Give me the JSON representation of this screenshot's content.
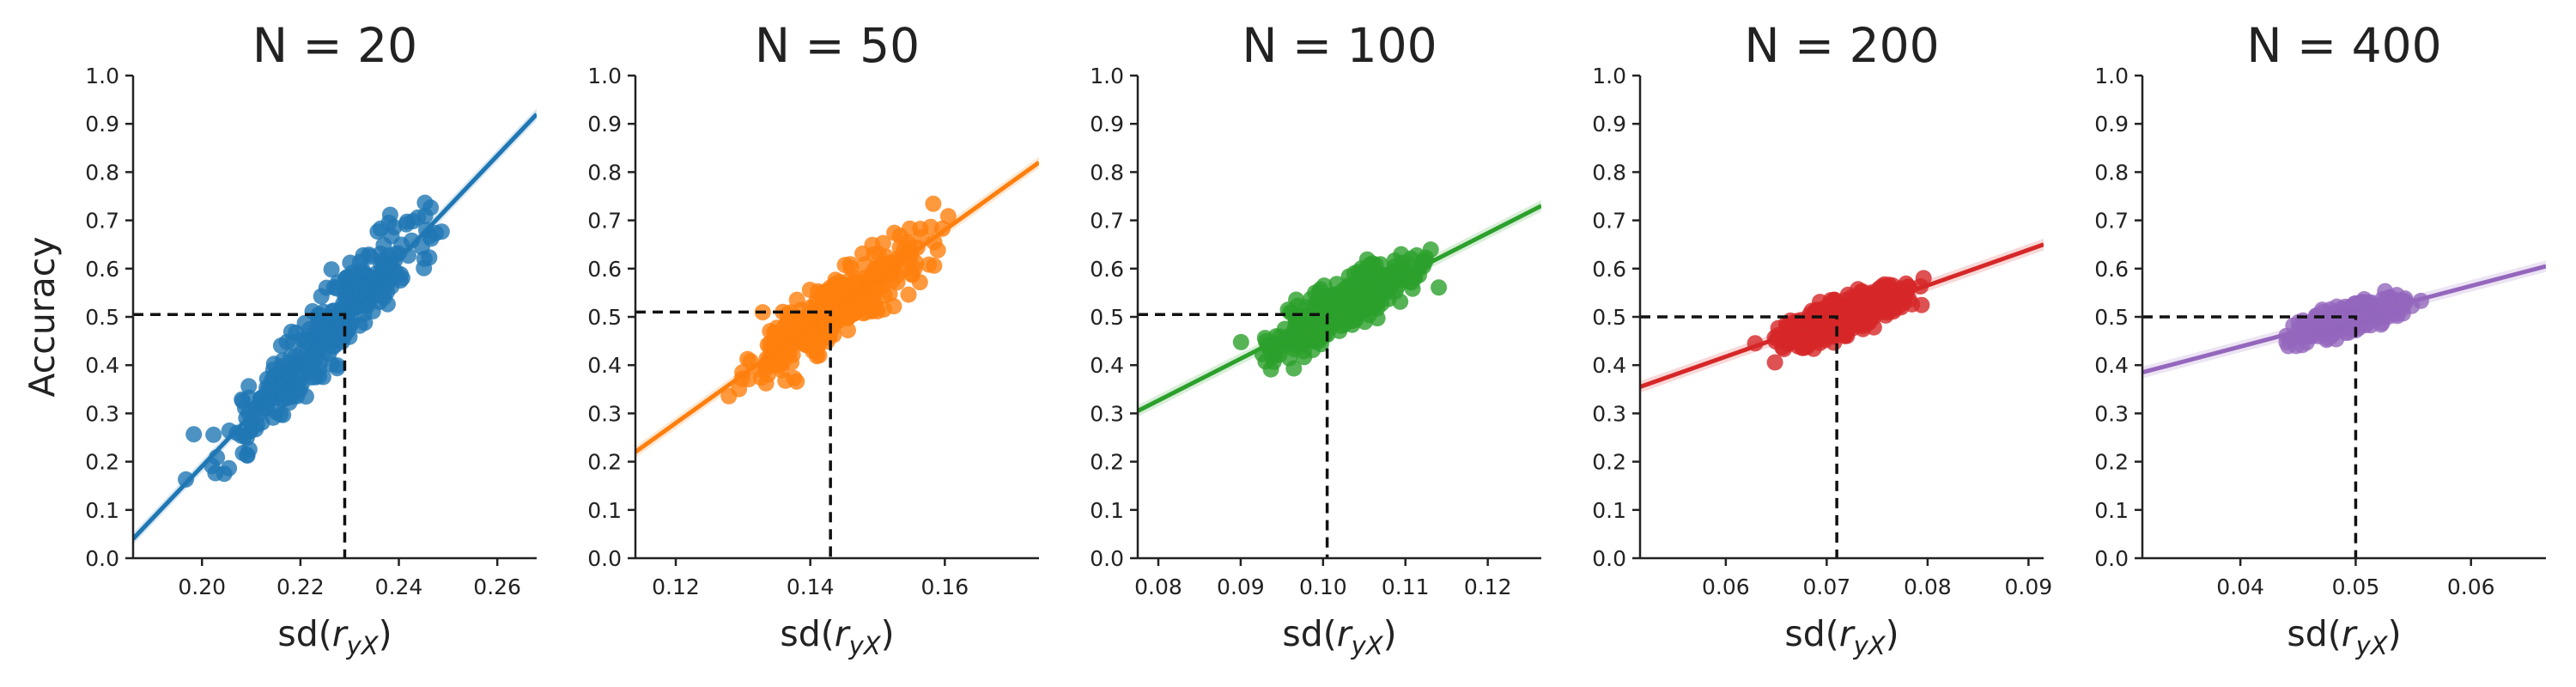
{
  "chart_data": [
    {
      "type": "scatter",
      "title": "N = 20",
      "xlabel": "sd(r_yX)",
      "ylabel": "Accuracy",
      "color": "#1f77b4",
      "xlim": [
        0.186,
        0.268
      ],
      "ylim": [
        0.0,
        1.0
      ],
      "xticks": [
        0.2,
        0.22,
        0.24,
        0.26
      ],
      "xtick_labels": [
        "0.20",
        "0.22",
        "0.24",
        "0.26"
      ],
      "yticks": [
        0.0,
        0.1,
        0.2,
        0.3,
        0.4,
        0.5,
        0.6,
        0.7,
        0.8,
        0.9,
        1.0
      ],
      "ytick_labels": [
        "0.0",
        "0.1",
        "0.2",
        "0.3",
        "0.4",
        "0.5",
        "0.6",
        "0.7",
        "0.8",
        "0.9",
        "1.0"
      ],
      "fit_line": {
        "x": [
          0.186,
          0.268
        ],
        "y": [
          0.04,
          0.92
        ]
      },
      "reference": {
        "x": 0.229,
        "y": 0.505
      },
      "scatter": {
        "x_center": 0.229,
        "y_center": 0.505,
        "x_range": [
          0.194,
          0.257
        ],
        "y_spread": 0.055,
        "n": 320,
        "seed": 11
      }
    },
    {
      "type": "scatter",
      "title": "N = 50",
      "xlabel": "sd(r_yX)",
      "ylabel": "",
      "color": "#ff7f0e",
      "xlim": [
        0.114,
        0.174
      ],
      "ylim": [
        0.0,
        1.0
      ],
      "xticks": [
        0.12,
        0.14,
        0.16
      ],
      "xtick_labels": [
        "0.12",
        "0.14",
        "0.16"
      ],
      "yticks": [
        0.0,
        0.1,
        0.2,
        0.3,
        0.4,
        0.5,
        0.6,
        0.7,
        0.8,
        0.9,
        1.0
      ],
      "ytick_labels": [
        "0.0",
        "0.1",
        "0.2",
        "0.3",
        "0.4",
        "0.5",
        "0.6",
        "0.7",
        "0.8",
        "0.9",
        "1.0"
      ],
      "fit_line": {
        "x": [
          0.114,
          0.174
        ],
        "y": [
          0.22,
          0.82
        ]
      },
      "reference": {
        "x": 0.143,
        "y": 0.51
      },
      "scatter": {
        "x_center": 0.143,
        "y_center": 0.51,
        "x_range": [
          0.125,
          0.163
        ],
        "y_spread": 0.045,
        "n": 320,
        "seed": 23
      }
    },
    {
      "type": "scatter",
      "title": "N = 100",
      "xlabel": "sd(r_yX)",
      "ylabel": "",
      "color": "#2ca02c",
      "xlim": [
        0.0775,
        0.1265
      ],
      "ylim": [
        0.0,
        1.0
      ],
      "xticks": [
        0.08,
        0.09,
        0.1,
        0.11,
        0.12
      ],
      "xtick_labels": [
        "0.08",
        "0.09",
        "0.10",
        "0.11",
        "0.12"
      ],
      "yticks": [
        0.0,
        0.1,
        0.2,
        0.3,
        0.4,
        0.5,
        0.6,
        0.7,
        0.8,
        0.9,
        1.0
      ],
      "ytick_labels": [
        "0.0",
        "0.1",
        "0.2",
        "0.3",
        "0.4",
        "0.5",
        "0.6",
        "0.7",
        "0.8",
        "0.9",
        "1.0"
      ],
      "fit_line": {
        "x": [
          0.0775,
          0.1265
        ],
        "y": [
          0.305,
          0.73
        ]
      },
      "reference": {
        "x": 0.1005,
        "y": 0.505
      },
      "scatter": {
        "x_center": 0.1005,
        "y_center": 0.505,
        "x_range": [
          0.088,
          0.116
        ],
        "y_spread": 0.035,
        "n": 320,
        "seed": 37
      }
    },
    {
      "type": "scatter",
      "title": "N = 200",
      "xlabel": "sd(r_yX)",
      "ylabel": "",
      "color": "#d62728",
      "xlim": [
        0.0515,
        0.0915
      ],
      "ylim": [
        0.0,
        1.0
      ],
      "xticks": [
        0.06,
        0.07,
        0.08,
        0.09
      ],
      "xtick_labels": [
        "0.06",
        "0.07",
        "0.08",
        "0.09"
      ],
      "yticks": [
        0.0,
        0.1,
        0.2,
        0.3,
        0.4,
        0.5,
        0.6,
        0.7,
        0.8,
        0.9,
        1.0
      ],
      "ytick_labels": [
        "0.0",
        "0.1",
        "0.2",
        "0.3",
        "0.4",
        "0.5",
        "0.6",
        "0.7",
        "0.8",
        "0.9",
        "1.0"
      ],
      "fit_line": {
        "x": [
          0.0515,
          0.0915
        ],
        "y": [
          0.355,
          0.65
        ]
      },
      "reference": {
        "x": 0.071,
        "y": 0.5
      },
      "scatter": {
        "x_center": 0.071,
        "y_center": 0.5,
        "x_range": [
          0.062,
          0.081
        ],
        "y_spread": 0.025,
        "n": 320,
        "seed": 53
      }
    },
    {
      "type": "scatter",
      "title": "N = 400",
      "xlabel": "sd(r_yX)",
      "ylabel": "",
      "color": "#9467bd",
      "xlim": [
        0.0315,
        0.0665
      ],
      "ylim": [
        0.0,
        1.0
      ],
      "xticks": [
        0.04,
        0.05,
        0.06
      ],
      "xtick_labels": [
        "0.04",
        "0.05",
        "0.06"
      ],
      "yticks": [
        0.0,
        0.1,
        0.2,
        0.3,
        0.4,
        0.5,
        0.6,
        0.7,
        0.8,
        0.9,
        1.0
      ],
      "ytick_labels": [
        "0.0",
        "0.1",
        "0.2",
        "0.3",
        "0.4",
        "0.5",
        "0.6",
        "0.7",
        "0.8",
        "0.9",
        "1.0"
      ],
      "fit_line": {
        "x": [
          0.0315,
          0.0665
        ],
        "y": [
          0.385,
          0.605
        ]
      },
      "reference": {
        "x": 0.05,
        "y": 0.5
      },
      "scatter": {
        "x_center": 0.05,
        "y_center": 0.5,
        "x_range": [
          0.043,
          0.056
        ],
        "y_spread": 0.018,
        "n": 320,
        "seed": 71
      }
    }
  ]
}
